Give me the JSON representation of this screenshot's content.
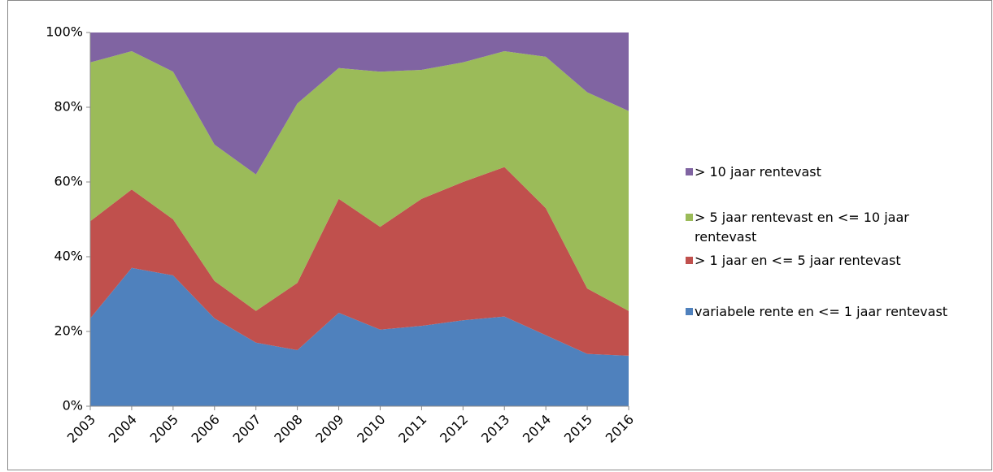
{
  "chart_data": {
    "type": "stacked_area_100",
    "categories": [
      "2003",
      "2004",
      "2005",
      "2006",
      "2007",
      "2008",
      "2009",
      "2010",
      "2011",
      "2012",
      "2013",
      "2014",
      "2015",
      "2016"
    ],
    "series": [
      {
        "name": "variabele rente en <= 1 jaar rentevast",
        "color": "#4f81bd",
        "values": [
          23.5,
          37,
          35,
          23.5,
          17,
          15,
          25,
          20.5,
          21.5,
          23,
          24,
          19,
          14,
          13.5
        ]
      },
      {
        "name": "> 1 jaar en <= 5 jaar rentevast",
        "color": "#c0504d",
        "values": [
          26,
          21,
          15,
          10,
          8.5,
          18,
          30.5,
          27.5,
          34,
          37,
          40,
          34,
          17.5,
          12
        ]
      },
      {
        "name": "> 5 jaar rentevast en <= 10 jaar rentevast",
        "color": "#9bbb59",
        "values": [
          42.5,
          37,
          39.5,
          36.5,
          36.5,
          48,
          35,
          41.5,
          34.5,
          32,
          31,
          40.5,
          52.5,
          53.5
        ]
      },
      {
        "name": "> 10 jaar rentevast",
        "color": "#8064a2",
        "values": [
          8,
          5,
          10.5,
          30,
          38,
          19,
          9.5,
          10.5,
          10,
          8,
          5,
          6.5,
          16,
          21
        ]
      }
    ],
    "ylim": [
      0,
      100
    ],
    "yticks": [
      {
        "value": 0,
        "label": "0%"
      },
      {
        "value": 20,
        "label": "20%"
      },
      {
        "value": 40,
        "label": "40%"
      },
      {
        "value": 60,
        "label": "60%"
      },
      {
        "value": 80,
        "label": "80%"
      },
      {
        "value": 100,
        "label": "100%"
      }
    ],
    "grid": false,
    "legend": "right"
  }
}
